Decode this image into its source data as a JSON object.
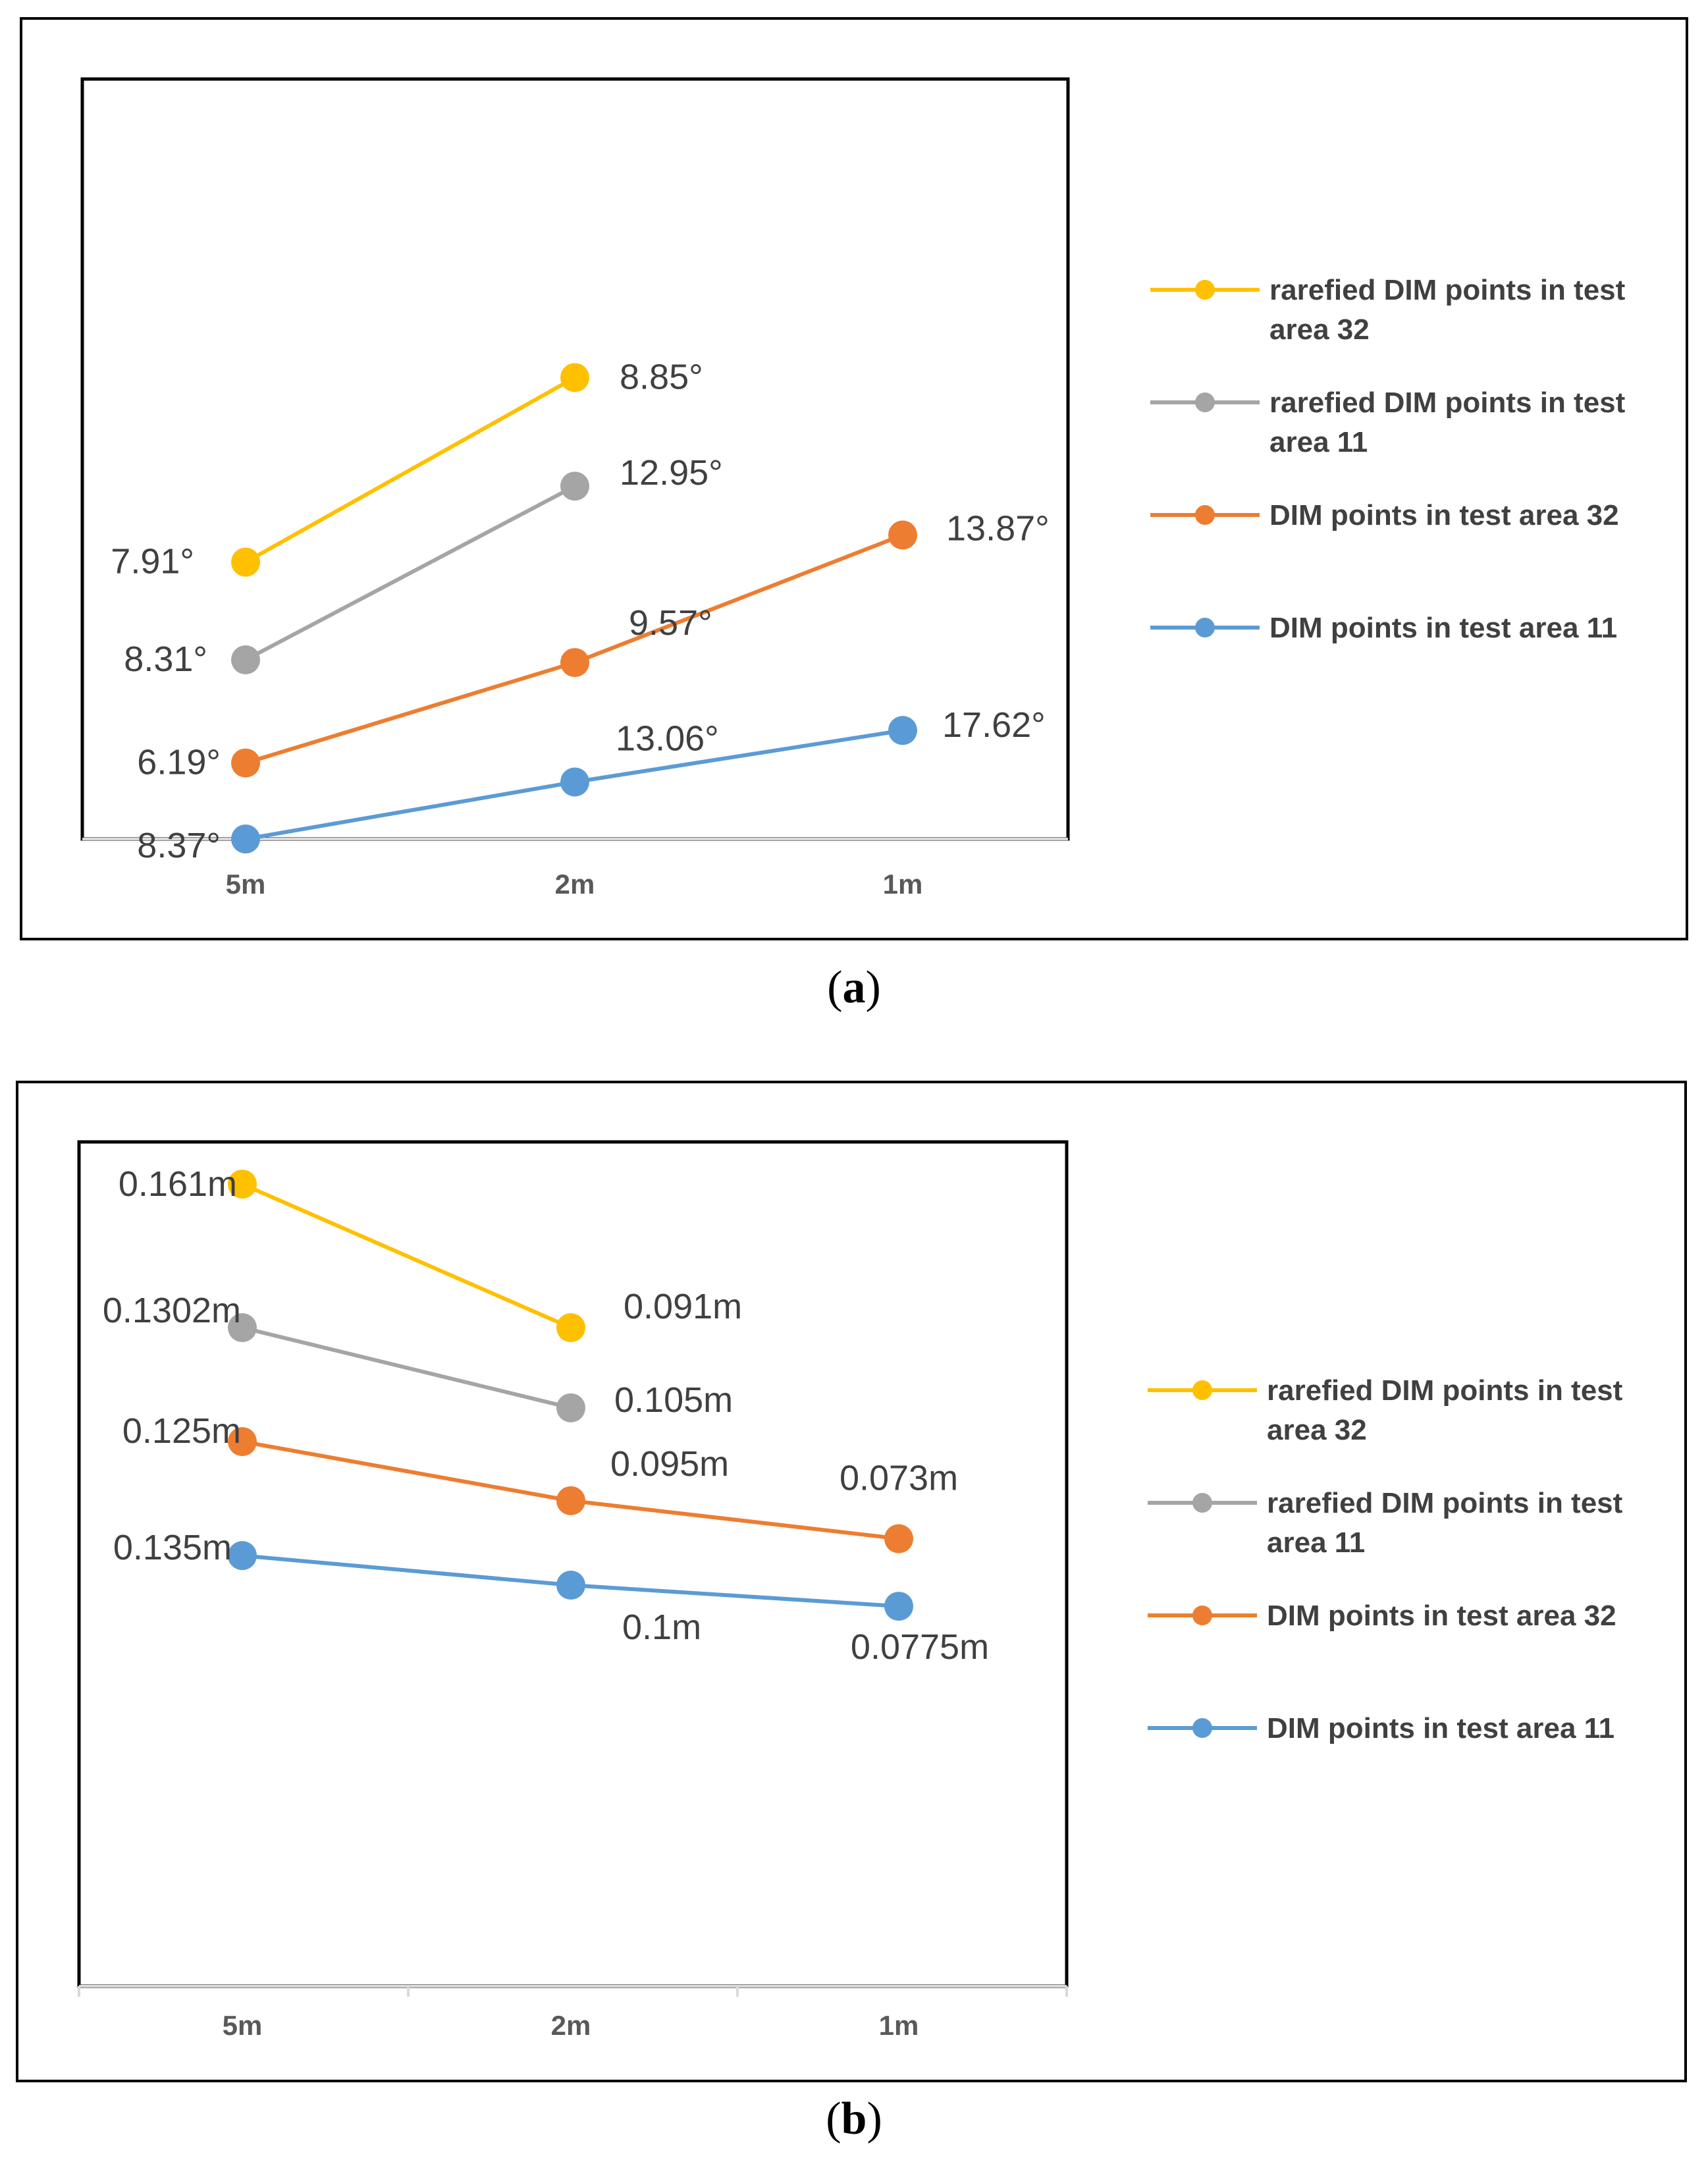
{
  "chart_data": [
    {
      "panel": "a",
      "caption": {
        "open": "(",
        "letter": "a",
        "close": ")"
      },
      "type": "line",
      "categories": [
        "5m",
        "2m",
        "1m"
      ],
      "ylim": [
        5,
        19
      ],
      "series": [
        {
          "name": "rarefied DIM points in test area 32",
          "color": "#FFC000",
          "values": [
            7.91,
            8.85,
            null
          ],
          "labels": [
            "7.91°",
            "8.85°",
            null
          ],
          "plot_y": [
            10.1,
            13.5,
            null
          ]
        },
        {
          "name": "rarefied DIM points in test area 11",
          "color": "#A5A5A5",
          "values": [
            8.31,
            12.95,
            null
          ],
          "labels": [
            "8.31°",
            "12.95°",
            null
          ],
          "plot_y": [
            8.3,
            11.5,
            null
          ]
        },
        {
          "name": "DIM points in test area 32",
          "color": "#ED7D31",
          "values": [
            6.19,
            9.57,
            13.87
          ],
          "labels": [
            "6.19°",
            "9.57°",
            "13.87°"
          ],
          "plot_y": [
            6.4,
            8.25,
            10.6
          ]
        },
        {
          "name": "DIM points in test area 11",
          "color": "#5B9BD5",
          "values": [
            8.37,
            13.06,
            17.62
          ],
          "labels": [
            "8.37°",
            "13.06°",
            "17.62°"
          ],
          "plot_y": [
            5.0,
            6.05,
            7.0
          ]
        }
      ]
    },
    {
      "panel": "b",
      "caption": {
        "open": "(",
        "letter": "b",
        "close": ")"
      },
      "type": "line",
      "categories": [
        "5m",
        "2m",
        "1m"
      ],
      "ylim": [
        0,
        0.2
      ],
      "series": [
        {
          "name": "rarefied DIM points in test area 32",
          "color": "#FFC000",
          "values": [
            0.161,
            0.091,
            null
          ],
          "labels": [
            "0.161m",
            "0.091m",
            null
          ],
          "plot_y": [
            0.19,
            0.156,
            null
          ]
        },
        {
          "name": "rarefied DIM points in test area 11",
          "color": "#A5A5A5",
          "values": [
            0.1302,
            0.105,
            null
          ],
          "labels": [
            "0.1302m",
            "0.105m",
            null
          ],
          "plot_y": [
            0.156,
            0.137,
            null
          ]
        },
        {
          "name": "DIM points in test area 32",
          "color": "#ED7D31",
          "values": [
            0.125,
            0.095,
            0.073
          ],
          "labels": [
            "0.125m",
            "0.095m",
            "0.073m"
          ],
          "plot_y": [
            0.129,
            0.115,
            0.106
          ]
        },
        {
          "name": "DIM points in test area 11",
          "color": "#5B9BD5",
          "values": [
            0.135,
            0.1,
            0.0775
          ],
          "labels": [
            "0.135m",
            "0.1m",
            "0.0775m"
          ],
          "plot_y": [
            0.102,
            0.095,
            0.09
          ]
        }
      ]
    }
  ]
}
